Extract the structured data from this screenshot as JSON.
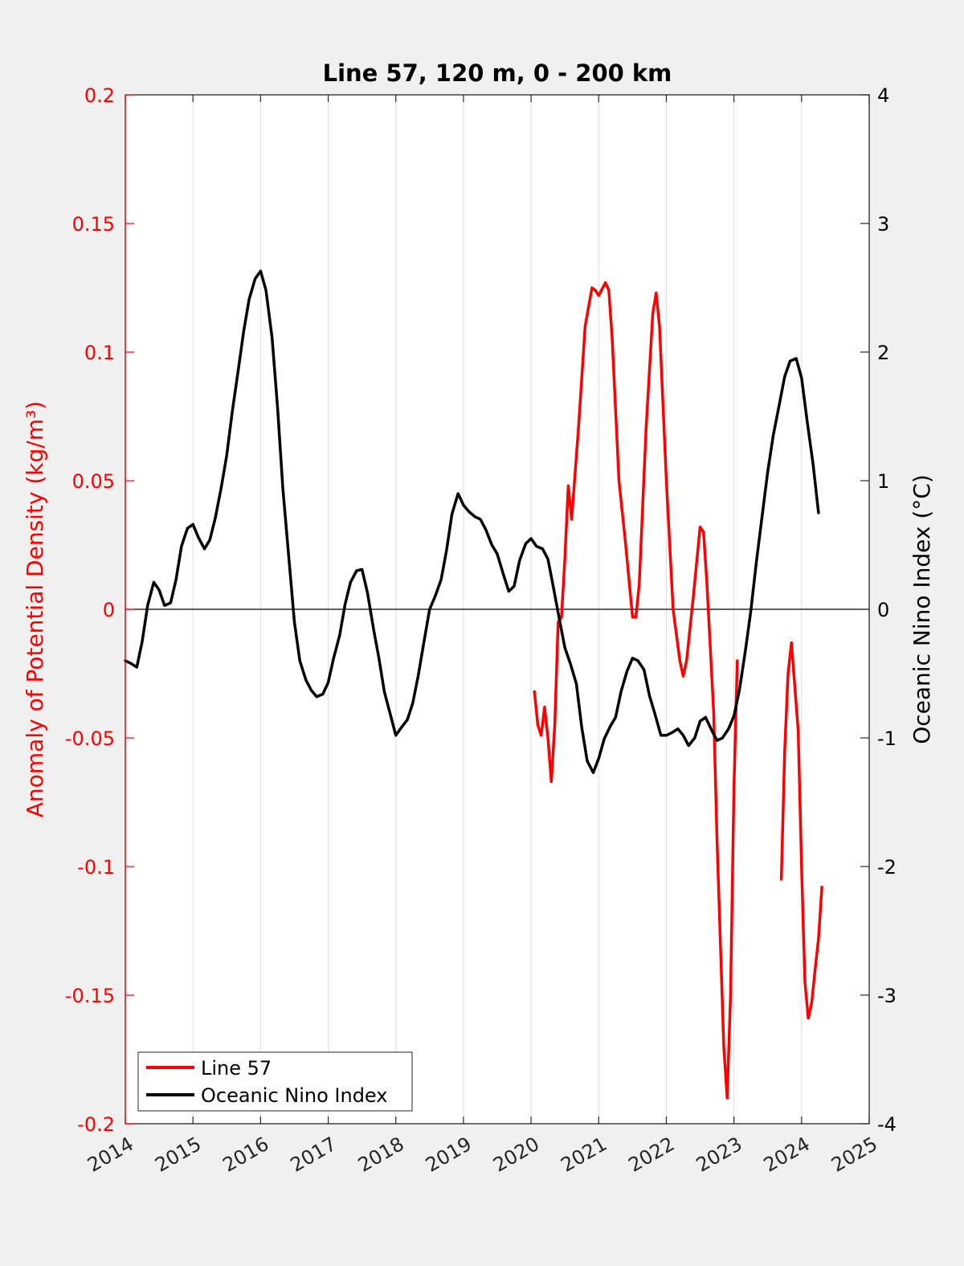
{
  "chart_data": {
    "type": "line",
    "title": "Line 57, 120 m, 0 - 200 km",
    "xlabel": "",
    "ylabel_left": "Anomaly of Potential Density (kg/m³)",
    "ylabel_right": "Oceanic Nino Index (°C)",
    "xlim": [
      2014,
      2025
    ],
    "ylim_left": [
      -0.2,
      0.2
    ],
    "ylim_right": [
      -4,
      4
    ],
    "x_ticks": [
      "2014",
      "2015",
      "2016",
      "2017",
      "2018",
      "2019",
      "2020",
      "2021",
      "2022",
      "2023",
      "2024",
      "2025"
    ],
    "y_ticks_left": [
      "0.2",
      "0.15",
      "0.1",
      "0.05",
      "0",
      "-0.05",
      "-0.1",
      "-0.15",
      "-0.2"
    ],
    "y_ticks_right": [
      "4",
      "3",
      "2",
      "1",
      "0",
      "-1",
      "-2",
      "-3",
      "-4"
    ],
    "grid": "vertical",
    "legend_position": "bottom-left",
    "colors": {
      "line57": "#ff0000",
      "oni": "#000000",
      "left_axis": "#ff0000",
      "right_axis": "#000000"
    },
    "series": [
      {
        "name": "Line 57",
        "axis": "left",
        "color": "#ff0000",
        "segments": [
          [
            [
              2020.05,
              -0.032
            ],
            [
              2020.1,
              -0.045
            ],
            [
              2020.15,
              -0.049
            ],
            [
              2020.2,
              -0.038
            ],
            [
              2020.25,
              -0.05
            ],
            [
              2020.3,
              -0.067
            ],
            [
              2020.35,
              -0.045
            ],
            [
              2020.4,
              -0.005
            ],
            [
              2020.45,
              -0.003
            ],
            [
              2020.5,
              0.02
            ],
            [
              2020.55,
              0.048
            ],
            [
              2020.6,
              0.035
            ],
            [
              2020.7,
              0.07
            ],
            [
              2020.8,
              0.11
            ],
            [
              2020.9,
              0.125
            ],
            [
              2020.95,
              0.124
            ],
            [
              2021.0,
              0.122
            ],
            [
              2021.1,
              0.127
            ],
            [
              2021.15,
              0.124
            ],
            [
              2021.2,
              0.105
            ],
            [
              2021.3,
              0.05
            ],
            [
              2021.4,
              0.025
            ],
            [
              2021.5,
              -0.003
            ],
            [
              2021.55,
              -0.003
            ],
            [
              2021.6,
              0.01
            ],
            [
              2021.7,
              0.07
            ],
            [
              2021.8,
              0.115
            ],
            [
              2021.85,
              0.123
            ],
            [
              2021.9,
              0.11
            ],
            [
              2022.0,
              0.05
            ],
            [
              2022.1,
              0.0
            ],
            [
              2022.2,
              -0.02
            ],
            [
              2022.25,
              -0.026
            ],
            [
              2022.3,
              -0.02
            ],
            [
              2022.4,
              0.005
            ],
            [
              2022.5,
              0.032
            ],
            [
              2022.55,
              0.03
            ],
            [
              2022.6,
              0.01
            ],
            [
              2022.7,
              -0.04
            ],
            [
              2022.75,
              -0.09
            ],
            [
              2022.8,
              -0.13
            ],
            [
              2022.85,
              -0.17
            ],
            [
              2022.9,
              -0.19
            ],
            [
              2022.95,
              -0.15
            ],
            [
              2023.0,
              -0.07
            ],
            [
              2023.05,
              -0.02
            ]
          ],
          [
            [
              2023.7,
              -0.105
            ],
            [
              2023.75,
              -0.055
            ],
            [
              2023.8,
              -0.025
            ],
            [
              2023.85,
              -0.013
            ],
            [
              2023.9,
              -0.03
            ],
            [
              2023.95,
              -0.047
            ],
            [
              2024.0,
              -0.1
            ],
            [
              2024.05,
              -0.145
            ],
            [
              2024.1,
              -0.159
            ],
            [
              2024.15,
              -0.153
            ],
            [
              2024.2,
              -0.14
            ],
            [
              2024.25,
              -0.128
            ],
            [
              2024.3,
              -0.108
            ]
          ]
        ]
      },
      {
        "name": "Oceanic Nino Index",
        "axis": "right",
        "color": "#000000",
        "x": [
          2014.0,
          2014.08,
          2014.17,
          2014.25,
          2014.33,
          2014.42,
          2014.5,
          2014.58,
          2014.67,
          2014.75,
          2014.83,
          2014.92,
          2015.0,
          2015.08,
          2015.17,
          2015.25,
          2015.33,
          2015.42,
          2015.5,
          2015.58,
          2015.67,
          2015.75,
          2015.83,
          2015.92,
          2016.0,
          2016.08,
          2016.17,
          2016.25,
          2016.33,
          2016.42,
          2016.5,
          2016.58,
          2016.67,
          2016.75,
          2016.83,
          2016.92,
          2017.0,
          2017.08,
          2017.17,
          2017.25,
          2017.33,
          2017.42,
          2017.5,
          2017.58,
          2017.67,
          2017.75,
          2017.83,
          2017.92,
          2018.0,
          2018.08,
          2018.17,
          2018.25,
          2018.33,
          2018.42,
          2018.5,
          2018.58,
          2018.67,
          2018.75,
          2018.83,
          2018.92,
          2019.0,
          2019.08,
          2019.17,
          2019.25,
          2019.33,
          2019.42,
          2019.5,
          2019.58,
          2019.67,
          2019.75,
          2019.83,
          2019.92,
          2020.0,
          2020.08,
          2020.17,
          2020.25,
          2020.33,
          2020.42,
          2020.5,
          2020.58,
          2020.67,
          2020.75,
          2020.83,
          2020.92,
          2021.0,
          2021.08,
          2021.17,
          2021.25,
          2021.33,
          2021.42,
          2021.5,
          2021.58,
          2021.67,
          2021.75,
          2021.83,
          2021.92,
          2022.0,
          2022.08,
          2022.17,
          2022.25,
          2022.33,
          2022.42,
          2022.5,
          2022.58,
          2022.67,
          2022.75,
          2022.83,
          2022.92,
          2023.0,
          2023.08,
          2023.17,
          2023.25,
          2023.33,
          2023.42,
          2023.5,
          2023.58,
          2023.67,
          2023.75,
          2023.83,
          2023.92,
          2024.0,
          2024.08,
          2024.17,
          2024.25
        ],
        "values": [
          -0.4,
          -0.42,
          -0.45,
          -0.25,
          0.03,
          0.21,
          0.15,
          0.03,
          0.05,
          0.23,
          0.49,
          0.63,
          0.66,
          0.56,
          0.47,
          0.54,
          0.71,
          0.95,
          1.2,
          1.53,
          1.86,
          2.16,
          2.41,
          2.57,
          2.63,
          2.48,
          2.11,
          1.58,
          0.94,
          0.39,
          -0.1,
          -0.4,
          -0.55,
          -0.63,
          -0.68,
          -0.66,
          -0.57,
          -0.38,
          -0.2,
          0.04,
          0.21,
          0.3,
          0.31,
          0.13,
          -0.15,
          -0.38,
          -0.64,
          -0.82,
          -0.98,
          -0.92,
          -0.86,
          -0.73,
          -0.52,
          -0.24,
          0.0,
          0.1,
          0.23,
          0.46,
          0.74,
          0.9,
          0.81,
          0.76,
          0.72,
          0.7,
          0.62,
          0.5,
          0.43,
          0.29,
          0.14,
          0.18,
          0.38,
          0.51,
          0.55,
          0.49,
          0.47,
          0.39,
          0.17,
          -0.08,
          -0.3,
          -0.42,
          -0.58,
          -0.92,
          -1.18,
          -1.27,
          -1.16,
          -1.01,
          -0.91,
          -0.84,
          -0.64,
          -0.48,
          -0.38,
          -0.4,
          -0.47,
          -0.67,
          -0.81,
          -0.98,
          -0.98,
          -0.96,
          -0.93,
          -0.98,
          -1.06,
          -1.0,
          -0.87,
          -0.84,
          -0.94,
          -1.02,
          -1.0,
          -0.93,
          -0.83,
          -0.63,
          -0.32,
          -0.01,
          0.36,
          0.74,
          1.07,
          1.35,
          1.59,
          1.81,
          1.93,
          1.95,
          1.8,
          1.47,
          1.13,
          0.75
        ]
      }
    ]
  },
  "legend": {
    "items": [
      {
        "label": "Line 57",
        "color": "#ff0000"
      },
      {
        "label": "Oceanic Nino Index",
        "color": "#000000"
      }
    ]
  }
}
